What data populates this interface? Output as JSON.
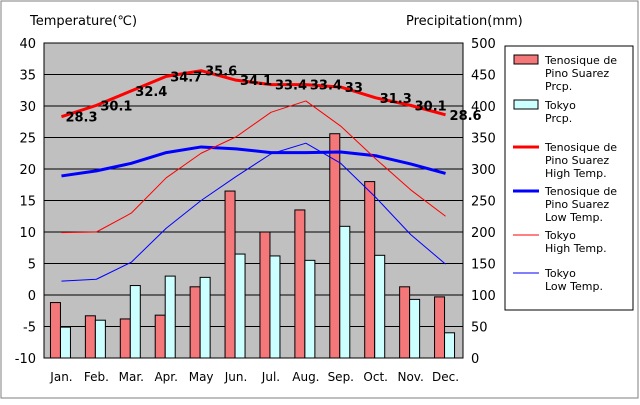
{
  "chart_data": {
    "type": "bar",
    "title": "",
    "left_axis": {
      "label": "Temperature(℃)",
      "min": -10,
      "max": 40,
      "step": 5
    },
    "right_axis": {
      "label": "Precipitation(mm)",
      "min": 0,
      "max": 500,
      "step": 50
    },
    "categories": [
      "Jan.",
      "Feb.",
      "Mar.",
      "Apr.",
      "May",
      "Jun.",
      "Jul.",
      "Aug.",
      "Sep.",
      "Oct.",
      "Nov.",
      "Dec."
    ],
    "grid": true,
    "legend_position": "right",
    "precipitation_series": [
      {
        "name": "Tenosique de Pino Suarez Prcp.",
        "color": "#f4777a",
        "values": [
          88,
          67,
          62,
          68,
          113,
          265,
          200,
          235,
          356,
          280,
          113,
          97
        ]
      },
      {
        "name": "Tokyo Prcp.",
        "color": "#ccffff",
        "values": [
          49,
          60,
          115,
          130,
          128,
          165,
          162,
          155,
          209,
          163,
          93,
          40
        ]
      }
    ],
    "temperature_series": [
      {
        "name": "Tenosique de Pino Suarez High Temp.",
        "color": "#ff0000",
        "width": 3,
        "values": [
          28.3,
          30.1,
          32.4,
          34.7,
          35.6,
          34.1,
          33.4,
          33.4,
          33.0,
          31.3,
          30.1,
          28.6
        ],
        "labels": [
          "28.3",
          "30.1",
          "32.4",
          "34.7",
          "35.6",
          "34.1",
          "33.4",
          "33.4",
          "33",
          "31.3",
          "30.1",
          "28.6"
        ]
      },
      {
        "name": "Tenosique de Pino Suarez Low Temp.",
        "color": "#0000ff",
        "width": 3,
        "values": [
          18.9,
          19.7,
          20.9,
          22.6,
          23.5,
          23.2,
          22.6,
          22.6,
          22.7,
          22.1,
          20.8,
          19.3
        ]
      },
      {
        "name": "Tokyo High Temp.",
        "color": "#ff0000",
        "width": 1,
        "values": [
          9.9,
          10.0,
          13.0,
          18.6,
          22.5,
          25.1,
          29.0,
          30.8,
          26.8,
          21.6,
          16.7,
          12.5
        ]
      },
      {
        "name": "Tokyo Low Temp.",
        "color": "#0000ff",
        "width": 1,
        "values": [
          2.2,
          2.5,
          5.2,
          10.6,
          15.0,
          18.8,
          22.4,
          24.1,
          20.9,
          15.5,
          9.6,
          4.9
        ]
      }
    ]
  },
  "legend": [
    {
      "lines": [
        "Tenosique de",
        "Pino Suarez",
        "Prcp."
      ],
      "kind": "box",
      "color": "#f4777a"
    },
    {
      "lines": [
        "Tokyo",
        "Prcp."
      ],
      "kind": "box",
      "color": "#ccffff"
    },
    {
      "lines": [
        "Tenosique de",
        "Pino Suarez",
        "High Temp."
      ],
      "kind": "line",
      "color": "#ff0000",
      "width": 3
    },
    {
      "lines": [
        "Tenosique de",
        "Pino Suarez",
        "Low Temp."
      ],
      "kind": "line",
      "color": "#0000ff",
      "width": 3
    },
    {
      "lines": [
        "Tokyo",
        "High Temp."
      ],
      "kind": "line",
      "color": "#ff0000",
      "width": 1
    },
    {
      "lines": [
        "Tokyo",
        "Low Temp."
      ],
      "kind": "line",
      "color": "#0000ff",
      "width": 1
    }
  ]
}
